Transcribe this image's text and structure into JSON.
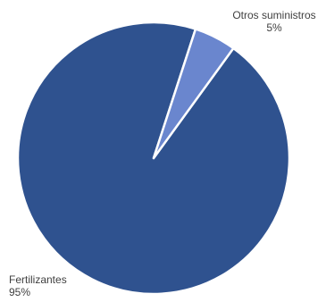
{
  "chart_data": {
    "type": "pie",
    "title": "",
    "slices": [
      {
        "label": "Fertilizantes",
        "value": 95,
        "display": "95%",
        "color": "#2f528f"
      },
      {
        "label": "Otros suministros",
        "value": 5,
        "display": "5%",
        "color": "#6a86ce"
      }
    ],
    "legend": "none",
    "labels": "outside-slices"
  }
}
